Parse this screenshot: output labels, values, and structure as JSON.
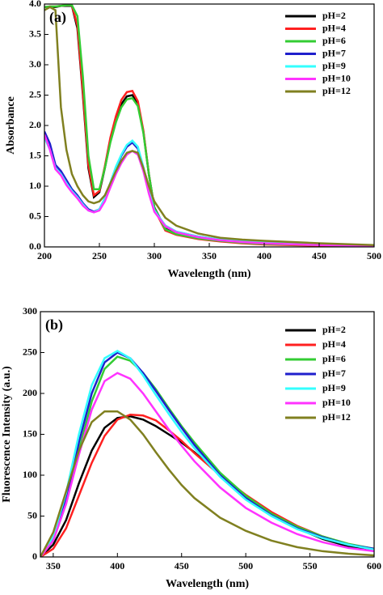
{
  "chart_data": [
    {
      "type": "line",
      "panel_label": "(a)",
      "x_label": "Wavelength (nm)",
      "y_label": "Absorbance",
      "x": [
        200,
        205,
        210,
        215,
        220,
        225,
        230,
        235,
        240,
        245,
        250,
        255,
        260,
        265,
        270,
        275,
        280,
        285,
        290,
        295,
        300,
        310,
        320,
        340,
        360,
        380,
        400,
        450,
        500
      ],
      "series": [
        {
          "name": "pH=2",
          "color": "#000000",
          "values": [
            3.95,
            3.95,
            3.95,
            3.97,
            3.97,
            3.97,
            3.6,
            2.5,
            1.3,
            0.82,
            0.9,
            1.3,
            1.75,
            2.1,
            2.35,
            2.48,
            2.5,
            2.35,
            1.9,
            1.2,
            0.65,
            0.3,
            0.22,
            0.15,
            0.1,
            0.07,
            0.05,
            0.03,
            0.02
          ]
        },
        {
          "name": "pH=4",
          "color": "#ff2020",
          "values": [
            3.95,
            3.96,
            3.96,
            3.97,
            3.98,
            3.98,
            3.65,
            2.55,
            1.35,
            0.85,
            0.92,
            1.33,
            1.8,
            2.15,
            2.42,
            2.55,
            2.57,
            2.4,
            1.92,
            1.2,
            0.62,
            0.27,
            0.2,
            0.13,
            0.09,
            0.06,
            0.04,
            0.02,
            0.01
          ]
        },
        {
          "name": "pH=6",
          "color": "#33cc33",
          "values": [
            3.95,
            3.96,
            3.96,
            3.97,
            3.98,
            3.98,
            3.8,
            2.8,
            1.5,
            0.95,
            0.95,
            1.3,
            1.72,
            2.05,
            2.3,
            2.43,
            2.45,
            2.32,
            1.88,
            1.2,
            0.64,
            0.29,
            0.21,
            0.14,
            0.1,
            0.07,
            0.05,
            0.03,
            0.02
          ]
        },
        {
          "name": "pH=7",
          "color": "#1f1fcc",
          "values": [
            1.9,
            1.7,
            1.35,
            1.25,
            1.1,
            0.95,
            0.85,
            0.72,
            0.62,
            0.58,
            0.62,
            0.8,
            1.05,
            1.3,
            1.5,
            1.65,
            1.72,
            1.62,
            1.3,
            0.9,
            0.6,
            0.35,
            0.25,
            0.17,
            0.12,
            0.09,
            0.07,
            0.04,
            0.02
          ]
        },
        {
          "name": "pH=9",
          "color": "#33ffff",
          "values": [
            1.8,
            1.6,
            1.3,
            1.2,
            1.05,
            0.92,
            0.82,
            0.7,
            0.6,
            0.57,
            0.62,
            0.8,
            1.06,
            1.32,
            1.52,
            1.68,
            1.75,
            1.65,
            1.32,
            0.92,
            0.6,
            0.35,
            0.25,
            0.17,
            0.12,
            0.09,
            0.07,
            0.04,
            0.02
          ]
        },
        {
          "name": "pH=10",
          "color": "#ff33ff",
          "values": [
            1.85,
            1.6,
            1.28,
            1.18,
            1.02,
            0.9,
            0.8,
            0.68,
            0.6,
            0.57,
            0.6,
            0.75,
            0.98,
            1.2,
            1.38,
            1.52,
            1.58,
            1.52,
            1.25,
            0.88,
            0.58,
            0.34,
            0.24,
            0.16,
            0.11,
            0.08,
            0.06,
            0.03,
            0.02
          ]
        },
        {
          "name": "pH=12",
          "color": "#808020",
          "values": [
            3.9,
            3.95,
            3.9,
            2.3,
            1.6,
            1.2,
            1.0,
            0.85,
            0.75,
            0.72,
            0.75,
            0.85,
            1.05,
            1.25,
            1.42,
            1.55,
            1.58,
            1.55,
            1.3,
            1.0,
            0.75,
            0.48,
            0.35,
            0.22,
            0.15,
            0.12,
            0.1,
            0.06,
            0.03
          ]
        }
      ],
      "xlim": [
        200,
        500
      ],
      "ylim": [
        0,
        4
      ],
      "xticks": [
        200,
        250,
        300,
        350,
        400,
        450,
        500
      ],
      "yticks": [
        {
          "value": 0,
          "label": "0.0"
        },
        0.5,
        {
          "value": 1,
          "label": "1.0"
        },
        1.5,
        {
          "value": 2,
          "label": "2.0"
        },
        2.5,
        {
          "value": 3,
          "label": "3.0"
        },
        3.5,
        {
          "value": 4,
          "label": "4.0"
        }
      ],
      "legend": "upper right"
    },
    {
      "type": "line",
      "panel_label": "(b)",
      "x_label": "Wavelength (nm)",
      "y_label": "Fluorescence Intensity (a.u.)",
      "x": [
        340,
        350,
        360,
        370,
        380,
        390,
        400,
        410,
        420,
        430,
        440,
        450,
        460,
        480,
        500,
        520,
        540,
        560,
        580,
        600
      ],
      "series": [
        {
          "name": "pH=2",
          "color": "#000000",
          "values": [
            0,
            15,
            45,
            90,
            130,
            158,
            170,
            172,
            168,
            160,
            150,
            140,
            128,
            100,
            75,
            52,
            35,
            22,
            13,
            8
          ]
        },
        {
          "name": "pH=4",
          "color": "#ff2020",
          "values": [
            0,
            10,
            35,
            75,
            115,
            148,
            168,
            174,
            173,
            167,
            155,
            142,
            127,
            100,
            76,
            55,
            38,
            25,
            15,
            10
          ]
        },
        {
          "name": "pH=6",
          "color": "#33cc33",
          "values": [
            0,
            20,
            65,
            130,
            190,
            230,
            245,
            240,
            225,
            205,
            182,
            160,
            140,
            103,
            75,
            53,
            37,
            25,
            16,
            10
          ]
        },
        {
          "name": "pH=7",
          "color": "#1f1fcc",
          "values": [
            0,
            22,
            70,
            140,
            200,
            238,
            250,
            243,
            225,
            203,
            180,
            158,
            137,
            100,
            72,
            51,
            35,
            24,
            15,
            10
          ]
        },
        {
          "name": "pH=9",
          "color": "#33ffff",
          "values": [
            0,
            25,
            78,
            150,
            210,
            243,
            252,
            243,
            222,
            198,
            175,
            153,
            133,
            98,
            70,
            50,
            34,
            23,
            15,
            9
          ]
        },
        {
          "name": "pH=10",
          "color": "#ff33ff",
          "values": [
            0,
            20,
            65,
            125,
            180,
            215,
            225,
            218,
            200,
            178,
            156,
            136,
            117,
            85,
            60,
            42,
            28,
            18,
            11,
            7
          ]
        },
        {
          "name": "pH=12",
          "color": "#808020",
          "values": [
            0,
            30,
            80,
            130,
            165,
            178,
            178,
            168,
            150,
            128,
            107,
            88,
            72,
            48,
            32,
            20,
            12,
            7,
            4,
            2
          ]
        }
      ],
      "xlim": [
        340,
        600
      ],
      "ylim": [
        0,
        300
      ],
      "xticks": [
        350,
        400,
        450,
        500,
        550,
        600
      ],
      "yticks": [
        0,
        50,
        100,
        150,
        200,
        250,
        300
      ],
      "legend": "upper right"
    }
  ]
}
